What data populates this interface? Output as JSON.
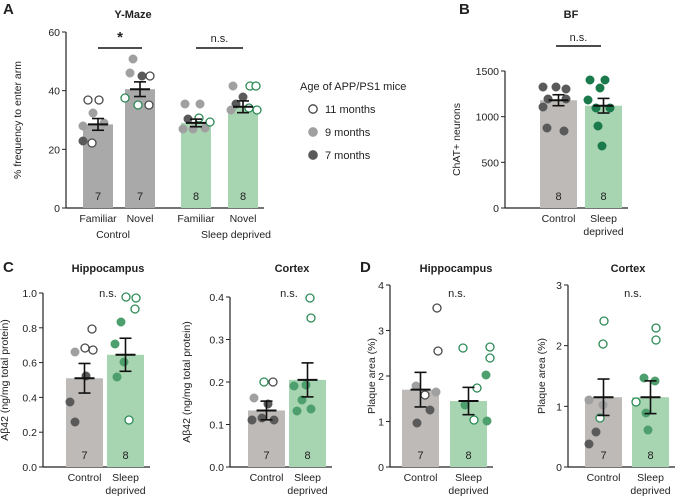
{
  "colors": {
    "control": "#a9a9a9",
    "sleep_deprived": "#a8d5b1",
    "control_light_bar": "#bdbab7",
    "dot_11": "#ffffff",
    "dot_9": "#a0a0a0",
    "dot_7": "#5a5a5a",
    "green_dark": "#1b7a4c",
    "green_mid": "#4d9f6d"
  },
  "legend": {
    "title": "Age of APP/PS1 mice",
    "items": [
      {
        "label": "11 months",
        "key": "dot_11"
      },
      {
        "label": "9 months",
        "key": "dot_9"
      },
      {
        "label": "7 months",
        "key": "dot_7"
      }
    ]
  },
  "chart_data": [
    {
      "panel": "A",
      "type": "bar",
      "title": "Y-Maze",
      "ylabel": "% frequency to enter arm",
      "ylim": [
        0,
        60
      ],
      "yticks": [
        0,
        20,
        40,
        60
      ],
      "categories": [
        "Familiar",
        "Novel",
        "Familiar",
        "Novel"
      ],
      "groups": [
        "Control",
        "Sleep deprived"
      ],
      "values": [
        28.5,
        40.5,
        29,
        34.5
      ],
      "sem": [
        2,
        2.5,
        1.3,
        2
      ],
      "n": [
        7,
        7,
        8,
        8
      ],
      "significance": [
        "*",
        "n.s."
      ]
    },
    {
      "panel": "B",
      "type": "bar",
      "title": "BF",
      "ylabel": "ChAT+ neurons",
      "ylim": [
        0,
        1500
      ],
      "yticks": [
        0,
        500,
        1000,
        1500
      ],
      "categories": [
        "Control",
        "Sleep deprived"
      ],
      "values": [
        1180,
        1120
      ],
      "sem": [
        60,
        80
      ],
      "n": [
        8,
        8
      ],
      "significance": [
        "n.s."
      ]
    },
    {
      "panel": "C",
      "type": "bar",
      "title": "Hippocampus",
      "ylabel": "Aβ42 (ng/mg total protein)",
      "ylim": [
        0,
        1.0
      ],
      "yticks": [
        "0.0",
        "0.2",
        "0.4",
        "0.6",
        "0.8",
        "1.0"
      ],
      "categories": [
        "Control",
        "Sleep deprived"
      ],
      "values": [
        0.51,
        0.645
      ],
      "sem": [
        0.085,
        0.095
      ],
      "n": [
        7,
        8
      ],
      "significance": [
        "n.s."
      ]
    },
    {
      "panel": "C2",
      "type": "bar",
      "title": "Cortex",
      "ylabel": "Aβ42 (ng/mg total protein)",
      "ylim": [
        0,
        0.4
      ],
      "yticks": [
        "0.0",
        "0.1",
        "0.2",
        "0.3",
        "0.4"
      ],
      "categories": [
        "Control",
        "Sleep deprived"
      ],
      "values": [
        0.133,
        0.205
      ],
      "sem": [
        0.022,
        0.04
      ],
      "n": [
        7,
        8
      ],
      "significance": [
        "n.s."
      ]
    },
    {
      "panel": "D",
      "type": "bar",
      "title": "Hippocampus",
      "ylabel": "Plaque area (%)",
      "ylim": [
        0,
        4
      ],
      "yticks": [
        0,
        1,
        2,
        3,
        4
      ],
      "categories": [
        "Control",
        "Sleep deprived"
      ],
      "values": [
        1.7,
        1.45
      ],
      "sem": [
        0.38,
        0.3
      ],
      "n": [
        7,
        8
      ],
      "significance": [
        "n.s."
      ]
    },
    {
      "panel": "D2",
      "type": "bar",
      "title": "Cortex",
      "ylabel": "Plaque area (%)",
      "ylim": [
        0,
        3
      ],
      "yticks": [
        0,
        1,
        2,
        3
      ],
      "categories": [
        "Control",
        "Sleep deprived"
      ],
      "values": [
        1.15,
        1.15
      ],
      "sem": [
        0.3,
        0.27
      ],
      "n": [
        7,
        8
      ],
      "significance": [
        "n.s."
      ]
    }
  ]
}
